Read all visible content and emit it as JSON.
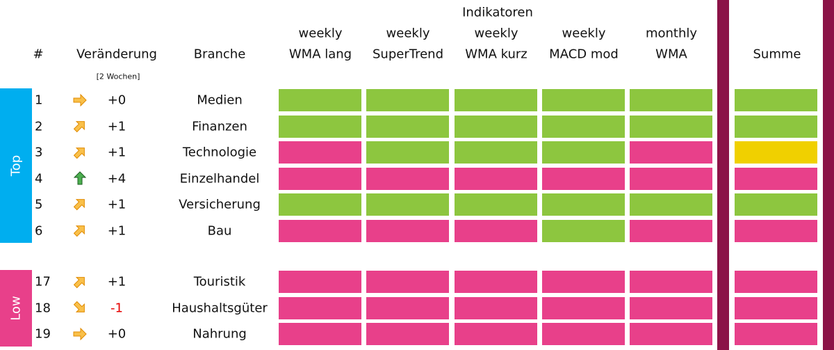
{
  "header": {
    "rank": "#",
    "change": "Veränderung",
    "change_note": "[2 Wochen]",
    "sector": "Branche",
    "group": "Indikatoren",
    "indicators": [
      [
        "weekly",
        "WMA lang"
      ],
      [
        "weekly",
        "SuperTrend"
      ],
      [
        "weekly",
        "WMA kurz"
      ],
      [
        "weekly",
        "MACD mod"
      ],
      [
        "monthly",
        "WMA"
      ]
    ],
    "sum": "Summe"
  },
  "groups": [
    {
      "label": "Top",
      "color": "#00aeef",
      "rows": [
        {
          "rank": "1",
          "change": "+0",
          "sector": "Medien",
          "cells": [
            "#8dc63f",
            "#8dc63f",
            "#8dc63f",
            "#8dc63f",
            "#8dc63f"
          ],
          "sum": "#8dc63f"
        },
        {
          "rank": "2",
          "change": "+1",
          "sector": "Finanzen",
          "cells": [
            "#8dc63f",
            "#8dc63f",
            "#8dc63f",
            "#8dc63f",
            "#8dc63f"
          ],
          "sum": "#8dc63f"
        },
        {
          "rank": "3",
          "change": "+1",
          "sector": "Technologie",
          "cells": [
            "#e8408a",
            "#8dc63f",
            "#8dc63f",
            "#8dc63f",
            "#e8408a"
          ],
          "sum": "#f0d000"
        },
        {
          "rank": "4",
          "change": "+4",
          "sector": "Einzelhandel",
          "cells": [
            "#e8408a",
            "#e8408a",
            "#e8408a",
            "#e8408a",
            "#e8408a"
          ],
          "sum": "#e8408a"
        },
        {
          "rank": "5",
          "change": "+1",
          "sector": "Versicherung",
          "cells": [
            "#8dc63f",
            "#8dc63f",
            "#8dc63f",
            "#8dc63f",
            "#8dc63f"
          ],
          "sum": "#8dc63f"
        },
        {
          "rank": "6",
          "change": "+1",
          "sector": "Bau",
          "cells": [
            "#e8408a",
            "#e8408a",
            "#e8408a",
            "#8dc63f",
            "#e8408a"
          ],
          "sum": "#e8408a"
        }
      ]
    },
    {
      "label": "Low",
      "color": "#e8408a",
      "rows": [
        {
          "rank": "17",
          "change": "+1",
          "sector": "Touristik",
          "cells": [
            "#e8408a",
            "#e8408a",
            "#e8408a",
            "#e8408a",
            "#e8408a"
          ],
          "sum": "#e8408a"
        },
        {
          "rank": "18",
          "change": "-1",
          "change_color": "#e60000",
          "sector": "Haushaltsgüter",
          "cells": [
            "#e8408a",
            "#e8408a",
            "#e8408a",
            "#e8408a",
            "#e8408a"
          ],
          "sum": "#e8408a"
        },
        {
          "rank": "19",
          "change": "+0",
          "sector": "Nahrung",
          "cells": [
            "#e8408a",
            "#e8408a",
            "#e8408a",
            "#e8408a",
            "#e8408a"
          ],
          "sum": "#e8408a"
        }
      ]
    }
  ]
}
